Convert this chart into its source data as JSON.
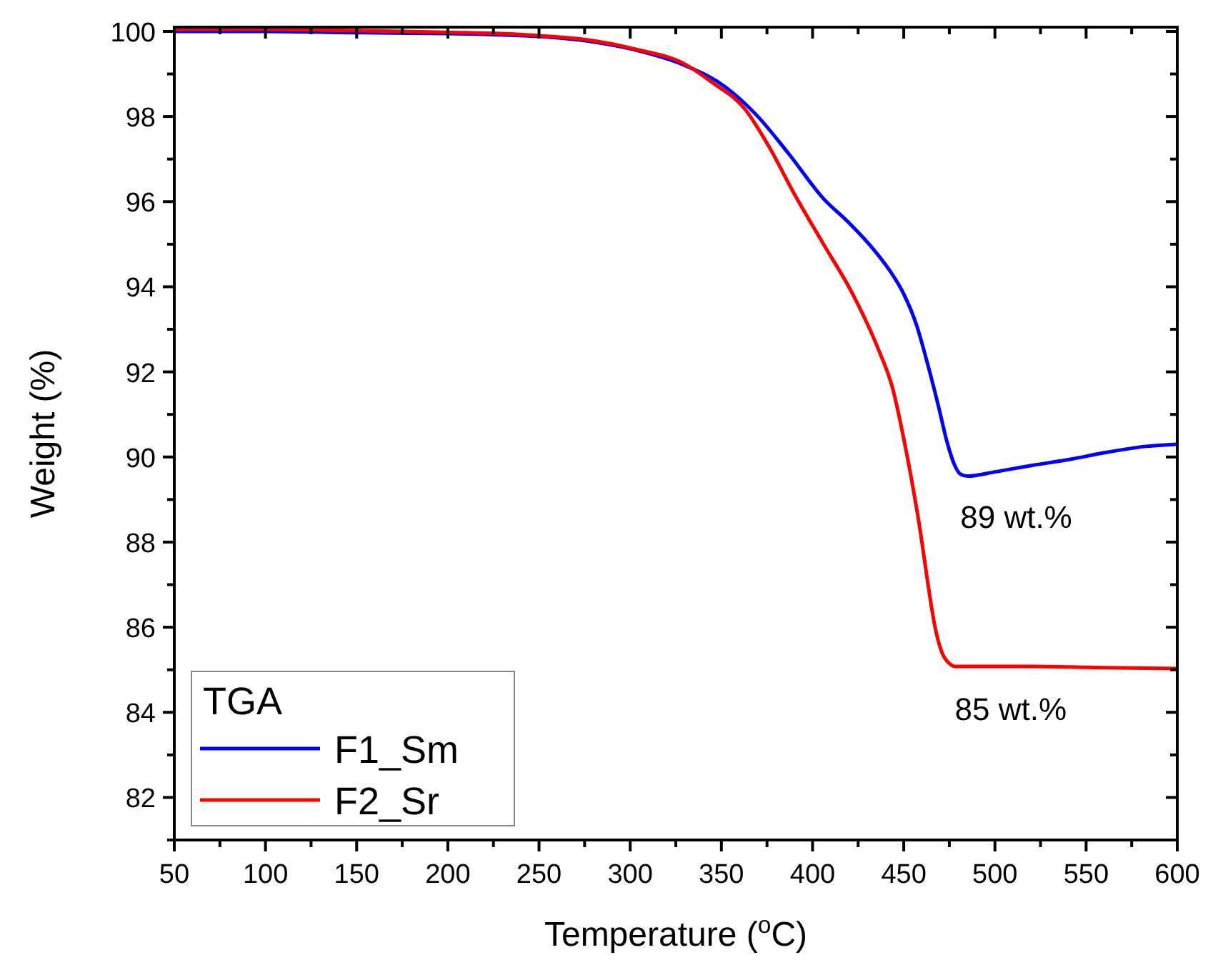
{
  "chart_data": {
    "type": "line",
    "xlabel": "Temperature ($^{o}$C)",
    "ylabel": "Weight (%)",
    "legend_title": "TGA",
    "legend": "bottom left",
    "xlim": [
      50,
      600
    ],
    "ylim": [
      81,
      100.1
    ],
    "xticks": [
      50,
      100,
      150,
      200,
      250,
      300,
      350,
      400,
      450,
      500,
      550,
      600
    ],
    "yticks": [
      82,
      84,
      86,
      88,
      90,
      92,
      94,
      96,
      98,
      100
    ],
    "grid": false,
    "series": [
      {
        "name": "F1_Sm",
        "color": "#0000ff",
        "x": [
          50,
          100,
          150,
          200,
          250,
          280,
          303,
          330,
          352,
          370,
          387,
          406,
          420,
          433,
          442,
          450,
          457,
          463,
          469,
          474,
          478,
          481,
          485,
          500,
          520,
          542,
          560,
          583,
          600
        ],
        "values": [
          100.0,
          100.0,
          99.97,
          99.95,
          99.88,
          99.75,
          99.56,
          99.2,
          98.7,
          98.0,
          97.12,
          96.07,
          95.5,
          94.9,
          94.4,
          93.83,
          93.1,
          92.2,
          91.2,
          90.31,
          89.8,
          89.6,
          89.55,
          89.65,
          89.8,
          89.95,
          90.1,
          90.25,
          90.3
        ]
      },
      {
        "name": "F2_Sr",
        "color": "#ff0000",
        "x": [
          50,
          100,
          150,
          200,
          250,
          280,
          303,
          330,
          345,
          363,
          376,
          390,
          406,
          422,
          436,
          444,
          450,
          455,
          459,
          463,
          467,
          471,
          475,
          478,
          485,
          520,
          560,
          600
        ],
        "values": [
          100.05,
          100.05,
          100.02,
          99.98,
          99.9,
          99.78,
          99.58,
          99.23,
          98.8,
          98.17,
          97.3,
          96.18,
          95.0,
          93.83,
          92.54,
          91.6,
          90.43,
          89.3,
          88.28,
          87.1,
          86.04,
          85.4,
          85.15,
          85.08,
          85.08,
          85.08,
          85.05,
          85.03
        ]
      }
    ],
    "annotations": [
      "89 wt.%",
      "85 wt.%"
    ]
  }
}
